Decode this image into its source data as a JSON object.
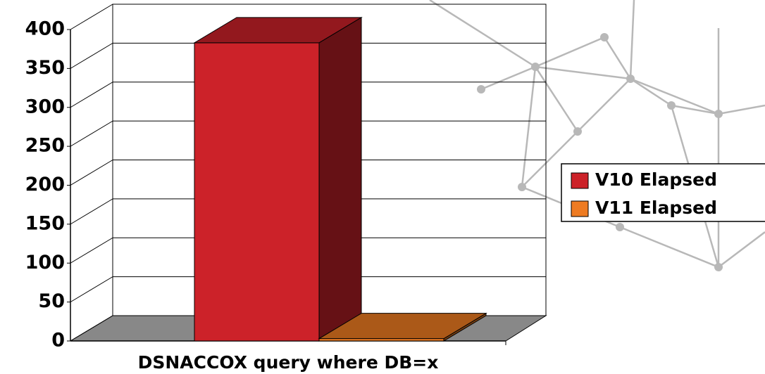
{
  "chart_data": {
    "type": "bar",
    "categories": [
      "DSNACCOX query where DB=x"
    ],
    "series": [
      {
        "name": "V10 Elapsed",
        "color": "#cc2229",
        "values": [
          383
        ]
      },
      {
        "name": "V11 Elapsed",
        "color": "#ee7b22",
        "values": [
          3
        ]
      }
    ],
    "ylim": [
      0,
      400
    ],
    "yticks": [
      0,
      50,
      100,
      150,
      200,
      250,
      300,
      350,
      400
    ],
    "grid": true,
    "legend": "right"
  }
}
